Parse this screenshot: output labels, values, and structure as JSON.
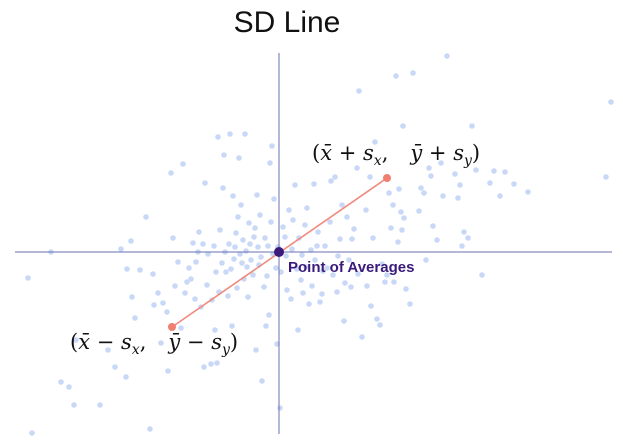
{
  "title": "SD Line",
  "point_of_averages_label": "Point of Averages",
  "upper_label": "(x̄ + sx,   ȳ + sy)",
  "lower_label": "(x̄ − sx,   ȳ − sy)",
  "colors": {
    "dots": "#c9d8f7",
    "axes": "#6b6fb0",
    "sd_line": "#f08a7e",
    "endpoint": "#f07e72",
    "center": "#3a1a7a",
    "label": "#3a1a7a",
    "text": "#111111"
  },
  "scatter_points": [
    [
      28,
      278
    ],
    [
      51,
      252
    ],
    [
      32,
      433
    ],
    [
      61,
      382
    ],
    [
      69,
      387
    ],
    [
      74,
      405
    ],
    [
      76,
      340
    ],
    [
      100,
      405
    ],
    [
      108,
      350
    ],
    [
      115,
      367
    ],
    [
      121,
      249
    ],
    [
      127,
      269
    ],
    [
      126,
      377
    ],
    [
      131,
      241
    ],
    [
      132,
      297
    ],
    [
      135,
      318
    ],
    [
      140,
      270
    ],
    [
      146,
      217
    ],
    [
      150,
      429
    ],
    [
      153,
      274
    ],
    [
      154,
      305
    ],
    [
      158,
      293
    ],
    [
      161,
      343
    ],
    [
      163,
      303
    ],
    [
      167,
      312
    ],
    [
      168,
      371
    ],
    [
      171,
      173
    ],
    [
      173,
      238
    ],
    [
      175,
      286
    ],
    [
      178,
      262
    ],
    [
      181,
      328
    ],
    [
      183,
      164
    ],
    [
      185,
      293
    ],
    [
      187,
      282
    ],
    [
      189,
      268
    ],
    [
      191,
      279
    ],
    [
      193,
      243
    ],
    [
      195,
      299
    ],
    [
      196,
      262
    ],
    [
      198,
      252
    ],
    [
      199,
      232
    ],
    [
      201,
      307
    ],
    [
      203,
      244
    ],
    [
      204,
      367
    ],
    [
      205,
      183
    ],
    [
      207,
      285
    ],
    [
      208,
      254
    ],
    [
      211,
      364
    ],
    [
      212,
      300
    ],
    [
      214,
      246
    ],
    [
      215,
      330
    ],
    [
      216,
      272
    ],
    [
      217,
      363
    ],
    [
      218,
      137
    ],
    [
      219,
      292
    ],
    [
      220,
      230
    ],
    [
      222,
      263
    ],
    [
      223,
      188
    ],
    [
      224,
      155
    ],
    [
      225,
      252
    ],
    [
      226,
      272
    ],
    [
      228,
      296
    ],
    [
      229,
      244
    ],
    [
      230,
      134
    ],
    [
      231,
      269
    ],
    [
      232,
      326
    ],
    [
      233,
      196
    ],
    [
      234,
      259
    ],
    [
      235,
      247
    ],
    [
      236,
      233
    ],
    [
      237,
      288
    ],
    [
      238,
      217
    ],
    [
      239,
      158
    ],
    [
      240,
      254
    ],
    [
      241,
      205
    ],
    [
      242,
      263
    ],
    [
      243,
      240
    ],
    [
      244,
      279
    ],
    [
      245,
      134
    ],
    [
      246,
      251
    ],
    [
      247,
      267
    ],
    [
      248,
      297
    ],
    [
      249,
      223
    ],
    [
      250,
      244
    ],
    [
      251,
      260
    ],
    [
      253,
      275
    ],
    [
      254,
      237
    ],
    [
      255,
      228
    ],
    [
      256,
      350
    ],
    [
      257,
      195
    ],
    [
      258,
      247
    ],
    [
      259,
      265
    ],
    [
      260,
      215
    ],
    [
      261,
      257
    ],
    [
      262,
      381
    ],
    [
      264,
      287
    ],
    [
      265,
      238
    ],
    [
      266,
      326
    ],
    [
      267,
      276
    ],
    [
      268,
      246
    ],
    [
      269,
      315
    ],
    [
      270,
      163
    ],
    [
      271,
      222
    ],
    [
      272,
      146
    ],
    [
      273,
      254
    ],
    [
      274,
      199
    ],
    [
      276,
      268
    ],
    [
      277,
      344
    ],
    [
      278,
      247
    ],
    [
      280,
      408
    ],
    [
      281,
      272
    ],
    [
      283,
      227
    ],
    [
      285,
      237
    ],
    [
      286,
      256
    ],
    [
      287,
      290
    ],
    [
      289,
      210
    ],
    [
      291,
      299
    ],
    [
      292,
      249
    ],
    [
      293,
      220
    ],
    [
      295,
      185
    ],
    [
      297,
      269
    ],
    [
      298,
      330
    ],
    [
      299,
      238
    ],
    [
      301,
      280
    ],
    [
      302,
      255
    ],
    [
      303,
      293
    ],
    [
      305,
      225
    ],
    [
      306,
      267
    ],
    [
      307,
      208
    ],
    [
      309,
      304
    ],
    [
      311,
      250
    ],
    [
      312,
      286
    ],
    [
      314,
      184
    ],
    [
      315,
      260
    ],
    [
      317,
      246
    ],
    [
      318,
      232
    ],
    [
      320,
      302
    ],
    [
      322,
      294
    ],
    [
      323,
      271
    ],
    [
      325,
      246
    ],
    [
      327,
      268
    ],
    [
      330,
      222
    ],
    [
      331,
      181
    ],
    [
      333,
      275
    ],
    [
      335,
      177
    ],
    [
      337,
      292
    ],
    [
      338,
      256
    ],
    [
      340,
      239
    ],
    [
      342,
      205
    ],
    [
      344,
      321
    ],
    [
      345,
      283
    ],
    [
      347,
      217
    ],
    [
      349,
      260
    ],
    [
      351,
      287
    ],
    [
      352,
      239
    ],
    [
      354,
      229
    ],
    [
      357,
      168
    ],
    [
      358,
      274
    ],
    [
      359,
      91
    ],
    [
      362,
      337
    ],
    [
      366,
      210
    ],
    [
      367,
      286
    ],
    [
      370,
      177
    ],
    [
      371,
      306
    ],
    [
      373,
      238
    ],
    [
      375,
      142
    ],
    [
      377,
      319
    ],
    [
      380,
      325
    ],
    [
      382,
      264
    ],
    [
      385,
      282
    ],
    [
      387,
      275
    ],
    [
      389,
      193
    ],
    [
      391,
      228
    ],
    [
      393,
      205
    ],
    [
      394,
      282
    ],
    [
      396,
      76
    ],
    [
      398,
      242
    ],
    [
      399,
      189
    ],
    [
      401,
      212
    ],
    [
      402,
      230
    ],
    [
      403,
      126
    ],
    [
      404,
      218
    ],
    [
      406,
      289
    ],
    [
      410,
      304
    ],
    [
      413,
      73
    ],
    [
      419,
      211
    ],
    [
      421,
      188
    ],
    [
      424,
      193
    ],
    [
      426,
      260
    ],
    [
      429,
      168
    ],
    [
      431,
      176
    ],
    [
      433,
      226
    ],
    [
      437,
      240
    ],
    [
      441,
      163
    ],
    [
      443,
      196
    ],
    [
      447,
      56
    ],
    [
      455,
      174
    ],
    [
      458,
      198
    ],
    [
      460,
      185
    ],
    [
      462,
      246
    ],
    [
      464,
      232
    ],
    [
      468,
      238
    ],
    [
      472,
      126
    ],
    [
      476,
      170
    ],
    [
      482,
      275
    ],
    [
      490,
      183
    ],
    [
      494,
      171
    ],
    [
      500,
      196
    ],
    [
      505,
      172
    ],
    [
      514,
      184
    ],
    [
      528,
      192
    ],
    [
      606,
      177
    ],
    [
      611,
      102
    ]
  ],
  "diagram": {
    "center": [
      279,
      252
    ],
    "upper_end": [
      387,
      178
    ],
    "lower_end": [
      172,
      327
    ],
    "h_axis": [
      15,
      252,
      612,
      252
    ],
    "v_axis": [
      279,
      53,
      279,
      434
    ]
  }
}
